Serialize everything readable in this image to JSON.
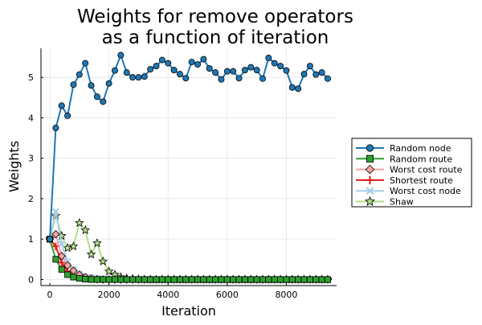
{
  "chart_data": {
    "type": "line",
    "title": [
      "Weights for remove operators",
      "as a function of iteration"
    ],
    "xlabel": "Iteration",
    "ylabel": "Weights",
    "xlim": [
      -300,
      9700
    ],
    "ylim": [
      -0.15,
      5.72
    ],
    "xticks": [
      0,
      2000,
      4000,
      6000,
      8000
    ],
    "yticks": [
      0,
      1,
      2,
      3,
      4,
      5
    ],
    "grid": true,
    "legend_position": "right",
    "series": [
      {
        "name": "Random node",
        "color": "#1f77b4",
        "marker": "circle",
        "x": [
          0,
          200,
          400,
          600,
          800,
          1000,
          1200,
          1400,
          1600,
          1800,
          2000,
          2200,
          2400,
          2600,
          2800,
          3000,
          3200,
          3400,
          3600,
          3800,
          4000,
          4200,
          4400,
          4600,
          4800,
          5000,
          5200,
          5400,
          5600,
          5800,
          6000,
          6200,
          6400,
          6600,
          6800,
          7000,
          7200,
          7400,
          7600,
          7800,
          8000,
          8200,
          8400,
          8600,
          8800,
          9000,
          9200,
          9400
        ],
        "y": [
          1.0,
          3.75,
          4.3,
          4.05,
          4.82,
          5.07,
          5.35,
          4.8,
          4.52,
          4.4,
          4.85,
          5.17,
          5.55,
          5.12,
          5.0,
          5.0,
          5.02,
          5.2,
          5.28,
          5.43,
          5.35,
          5.18,
          5.08,
          4.98,
          5.38,
          5.32,
          5.45,
          5.22,
          5.12,
          4.95,
          5.15,
          5.15,
          4.98,
          5.18,
          5.25,
          5.18,
          4.97,
          5.48,
          5.35,
          5.28,
          5.17,
          4.75,
          4.72,
          5.08,
          5.28,
          5.07,
          5.12,
          4.97
        ]
      },
      {
        "name": "Random route",
        "color": "#2ca02c",
        "marker": "square",
        "x": [
          0,
          200,
          400,
          600,
          800,
          1000,
          1200,
          1400,
          1600,
          1800,
          2000,
          2200,
          2400,
          2600,
          2800,
          3000,
          3200,
          3400,
          3600,
          3800,
          4000,
          4200,
          4400,
          4600,
          4800,
          5000,
          5200,
          5400,
          5600,
          5800,
          6000,
          6200,
          6400,
          6600,
          6800,
          7000,
          7200,
          7400,
          7600,
          7800,
          8000,
          8200,
          8400,
          8600,
          8800,
          9000,
          9200,
          9400
        ],
        "y": [
          1.0,
          0.5,
          0.25,
          0.12,
          0.06,
          0.03,
          0.01,
          0,
          0,
          0,
          0,
          0,
          0,
          0,
          0,
          0,
          0,
          0,
          0,
          0,
          0,
          0,
          0,
          0,
          0,
          0,
          0,
          0,
          0,
          0,
          0,
          0,
          0,
          0,
          0,
          0,
          0,
          0,
          0,
          0,
          0,
          0,
          0,
          0,
          0,
          0,
          0,
          0
        ]
      },
      {
        "name": "Worst cost route",
        "color": "#f4a3a3",
        "marker": "diamond",
        "x": [
          0,
          200,
          400,
          600,
          800,
          1000,
          1200,
          1400,
          1600,
          1800,
          2000,
          2200,
          2400,
          2600,
          2800,
          3000,
          3200,
          3400,
          3600,
          3800,
          4000,
          4200,
          4400,
          4600,
          4800,
          5000,
          5200,
          5400,
          5600,
          5800,
          6000,
          6200,
          6400,
          6600,
          6800,
          7000,
          7200,
          7400,
          7600,
          7800,
          8000,
          8200,
          8400,
          8600,
          8800,
          9000,
          9200,
          9400
        ],
        "y": [
          1.0,
          1.12,
          0.58,
          0.35,
          0.22,
          0.12,
          0.06,
          0.03,
          0.01,
          0,
          0,
          0,
          0,
          0,
          0,
          0,
          0,
          0,
          0,
          0,
          0,
          0,
          0,
          0,
          0,
          0,
          0,
          0,
          0,
          0,
          0,
          0,
          0,
          0,
          0,
          0,
          0,
          0,
          0,
          0,
          0,
          0,
          0,
          0,
          0,
          0,
          0,
          0
        ]
      },
      {
        "name": "Shortest route",
        "color": "#e31a1c",
        "marker": "plus",
        "x": [
          0,
          200,
          400,
          600,
          800,
          1000,
          1200,
          1400,
          1600,
          1800,
          2000,
          2200,
          2400,
          2600,
          2800,
          3000,
          3200,
          3400,
          3600,
          3800,
          4000,
          4200,
          4400,
          4600,
          4800,
          5000,
          5200,
          5400,
          5600,
          5800,
          6000,
          6200,
          6400,
          6600,
          6800,
          7000,
          7200,
          7400,
          7600,
          7800,
          8000,
          8200,
          8400,
          8600,
          8800,
          9000,
          9200,
          9400
        ],
        "y": [
          1.0,
          0.82,
          0.42,
          0.2,
          0.1,
          0.05,
          0.02,
          0.01,
          0,
          0,
          0,
          0,
          0,
          0,
          0,
          0,
          0,
          0,
          0,
          0,
          0,
          0,
          0,
          0,
          0,
          0,
          0,
          0,
          0,
          0,
          0,
          0,
          0,
          0,
          0,
          0,
          0,
          0,
          0,
          0,
          0,
          0,
          0,
          0,
          0,
          0,
          0,
          0
        ]
      },
      {
        "name": "Worst cost node",
        "color": "#a6cee3",
        "marker": "x",
        "x": [
          0,
          200,
          400,
          600,
          800,
          1000,
          1200,
          1400,
          1600,
          1800,
          2000,
          2200,
          2400,
          2600,
          2800,
          3000,
          3200,
          3400,
          3600,
          3800,
          4000,
          4200,
          4400,
          4600,
          4800,
          5000,
          5200,
          5400,
          5600,
          5800,
          6000,
          6200,
          6400,
          6600,
          6800,
          7000,
          7200,
          7400,
          7600,
          7800,
          8000,
          8200,
          8400,
          8600,
          8800,
          9000,
          9200,
          9400
        ],
        "y": [
          1.0,
          1.68,
          0.88,
          0.45,
          0.25,
          0.14,
          0.08,
          0.05,
          0.03,
          0.02,
          0.01,
          0.01,
          0,
          0,
          0,
          0,
          0,
          0,
          0,
          0,
          0,
          0,
          0,
          0,
          0,
          0,
          0,
          0,
          0,
          0,
          0,
          0,
          0,
          0,
          0,
          0,
          0,
          0,
          0,
          0,
          0,
          0,
          0,
          0,
          0,
          0,
          0,
          0
        ]
      },
      {
        "name": "Shaw",
        "color": "#b2df8a",
        "marker": "star",
        "x": [
          0,
          200,
          400,
          600,
          800,
          1000,
          1200,
          1400,
          1600,
          1800,
          2000,
          2200,
          2400,
          2600,
          2800,
          3000,
          3200,
          3400,
          3600,
          3800,
          4000,
          4200,
          4400,
          4600,
          4800,
          5000,
          5200,
          5400,
          5600,
          5800,
          6000,
          6200,
          6400,
          6600,
          6800,
          7000,
          7200,
          7400,
          7600,
          7800,
          8000,
          8200,
          8400,
          8600,
          8800,
          9000,
          9200,
          9400
        ],
        "y": [
          1.0,
          1.58,
          1.08,
          0.78,
          0.82,
          1.4,
          1.22,
          0.62,
          0.9,
          0.45,
          0.2,
          0.12,
          0.06,
          0.03,
          0.02,
          0.01,
          0,
          0,
          0,
          0,
          0,
          0,
          0,
          0,
          0,
          0,
          0,
          0,
          0,
          0,
          0,
          0,
          0,
          0,
          0,
          0,
          0,
          0,
          0,
          0,
          0,
          0,
          0,
          0,
          0,
          0,
          0,
          0
        ]
      }
    ]
  }
}
